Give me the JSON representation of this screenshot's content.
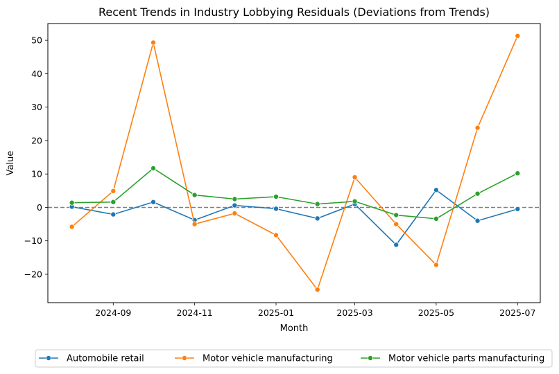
{
  "chart_data": {
    "type": "line",
    "title": "Recent Trends in Industry Lobbying Residuals (Deviations from Trends)",
    "xlabel": "Month",
    "ylabel": "Value",
    "x": [
      "2024-08",
      "2024-09",
      "2024-10",
      "2024-11",
      "2024-12",
      "2025-01",
      "2025-02",
      "2025-03",
      "2025-04",
      "2025-05",
      "2025-06",
      "2025-07"
    ],
    "xticks": [
      "2024-09",
      "2024-11",
      "2025-01",
      "2025-03",
      "2025-05",
      "2025-07"
    ],
    "yticks": [
      -20,
      -10,
      0,
      10,
      20,
      30,
      40,
      50
    ],
    "ylim": [
      -28.5,
      55
    ],
    "xlim": [
      "2024-07-14",
      "2025-07-18"
    ],
    "reference_line": {
      "y": 0,
      "style": "dashed",
      "color": "#808080"
    },
    "grid": false,
    "legend_position": "bottom-center",
    "series": [
      {
        "name": "Automobile retail",
        "color": "#1f77b4",
        "values": [
          0.2,
          -2.1,
          1.6,
          -3.8,
          0.6,
          -0.4,
          -3.3,
          1.0,
          -11.2,
          5.2,
          -4.0,
          -0.5
        ]
      },
      {
        "name": "Motor vehicle manufacturing",
        "color": "#ff7f0e",
        "values": [
          -5.8,
          4.9,
          49.3,
          -5.0,
          -1.8,
          -8.3,
          -24.6,
          9.0,
          -5.0,
          -17.2,
          23.8,
          51.3
        ]
      },
      {
        "name": "Motor vehicle parts manufacturing",
        "color": "#2ca02c",
        "values": [
          1.4,
          1.6,
          11.7,
          3.7,
          2.5,
          3.2,
          1.0,
          1.8,
          -2.3,
          -3.4,
          4.1,
          10.2
        ]
      }
    ]
  }
}
